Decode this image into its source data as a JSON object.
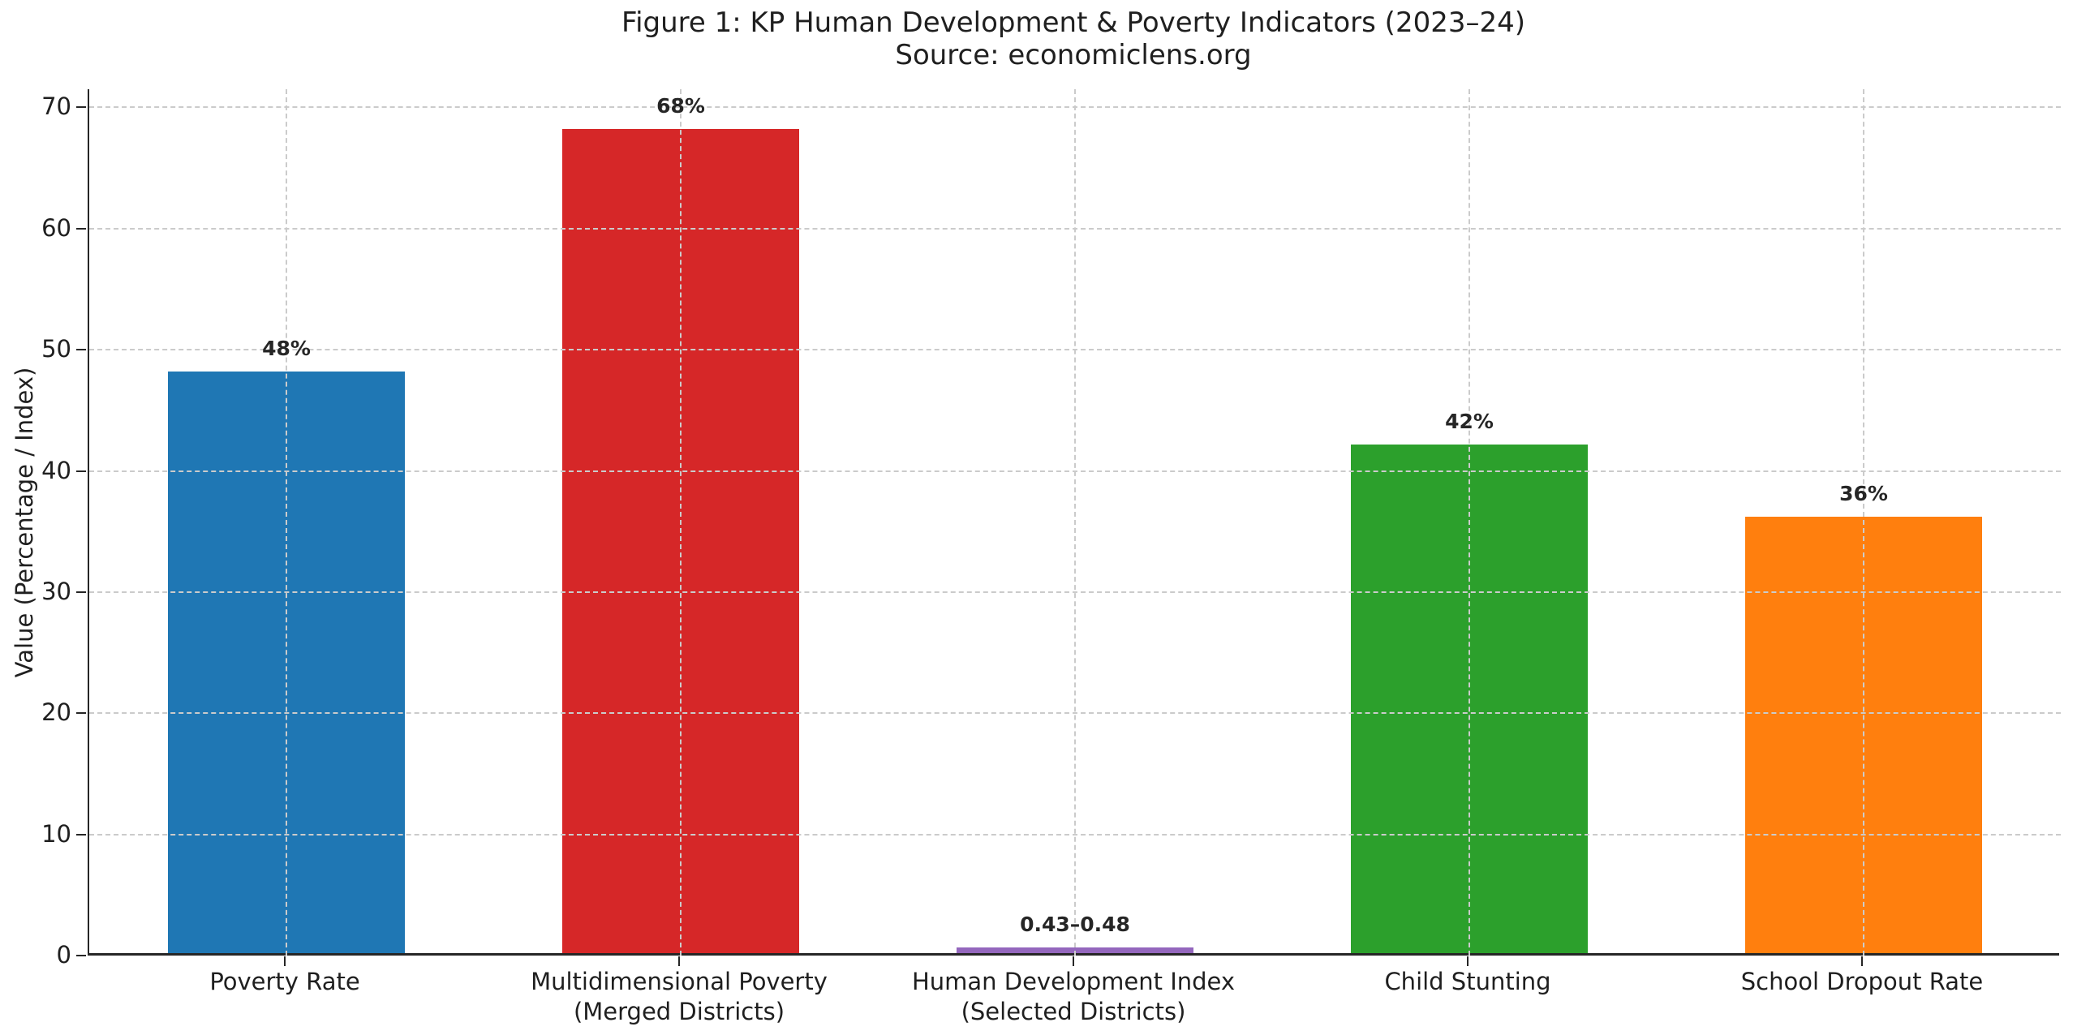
{
  "title": {
    "line1": "Figure 1: KP Human Development & Poverty Indicators (2023–24)",
    "line2": "Source: economiclens.org"
  },
  "chart_data": {
    "type": "bar",
    "title": "Figure 1: KP Human Development & Poverty Indicators (2023–24)",
    "subtitle": "Source: economiclens.org",
    "xlabel": "",
    "ylabel": "Value (Percentage / Index)",
    "ylim": [
      0,
      71.5
    ],
    "yticks": [
      0,
      10,
      20,
      30,
      40,
      50,
      60,
      70
    ],
    "grid": {
      "style": "dashed",
      "color": "#cbcbcb",
      "x": true,
      "y": true,
      "above_bars": true
    },
    "legend": "none",
    "categories": [
      [
        "Poverty Rate"
      ],
      [
        "Multidimensional Poverty",
        "(Merged Districts)"
      ],
      [
        "Human Development Index",
        "(Selected Districts)"
      ],
      [
        "Child Stunting"
      ],
      [
        "School Dropout Rate"
      ]
    ],
    "series": [
      {
        "name": "Value",
        "values": [
          48,
          68,
          0.455,
          42,
          36
        ],
        "value_labels": [
          "48%",
          "68%",
          "0.43–0.48",
          "42%",
          "36%"
        ],
        "bar_colors": [
          "#1f77b4",
          "#d62728",
          "#9467bd",
          "#2ca02c",
          "#ff7f0e"
        ]
      }
    ],
    "spine_color": "#262626",
    "text_color": "#1f1f1f"
  }
}
